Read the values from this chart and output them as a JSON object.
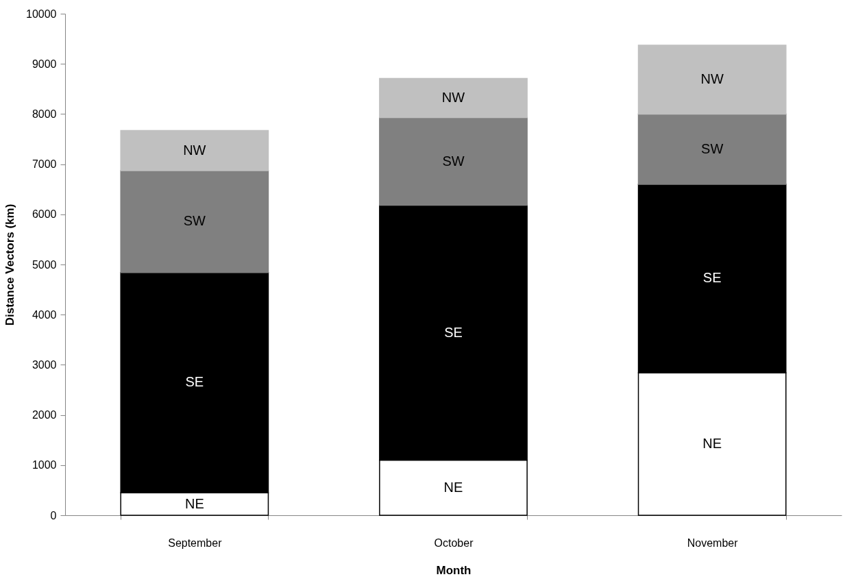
{
  "chart_data": {
    "type": "bar",
    "stacked": true,
    "xlabel": "Month",
    "ylabel": "Distance Vectors (km)",
    "categories": [
      "September",
      "October",
      "November"
    ],
    "series": [
      {
        "name": "NE",
        "color": "#ffffff",
        "values": [
          450,
          1100,
          2840
        ]
      },
      {
        "name": "SE",
        "color": "#000000",
        "values": [
          4390,
          5080,
          3760
        ]
      },
      {
        "name": "SW",
        "color": "#808080",
        "values": [
          2030,
          1750,
          1400
        ]
      },
      {
        "name": "NW",
        "color": "#c0c0c0",
        "values": [
          800,
          780,
          1370
        ]
      }
    ],
    "ylim": [
      0,
      10000
    ],
    "yticks": [
      0,
      1000,
      2000,
      3000,
      4000,
      5000,
      6000,
      7000,
      8000,
      9000,
      10000
    ],
    "grid": false
  }
}
